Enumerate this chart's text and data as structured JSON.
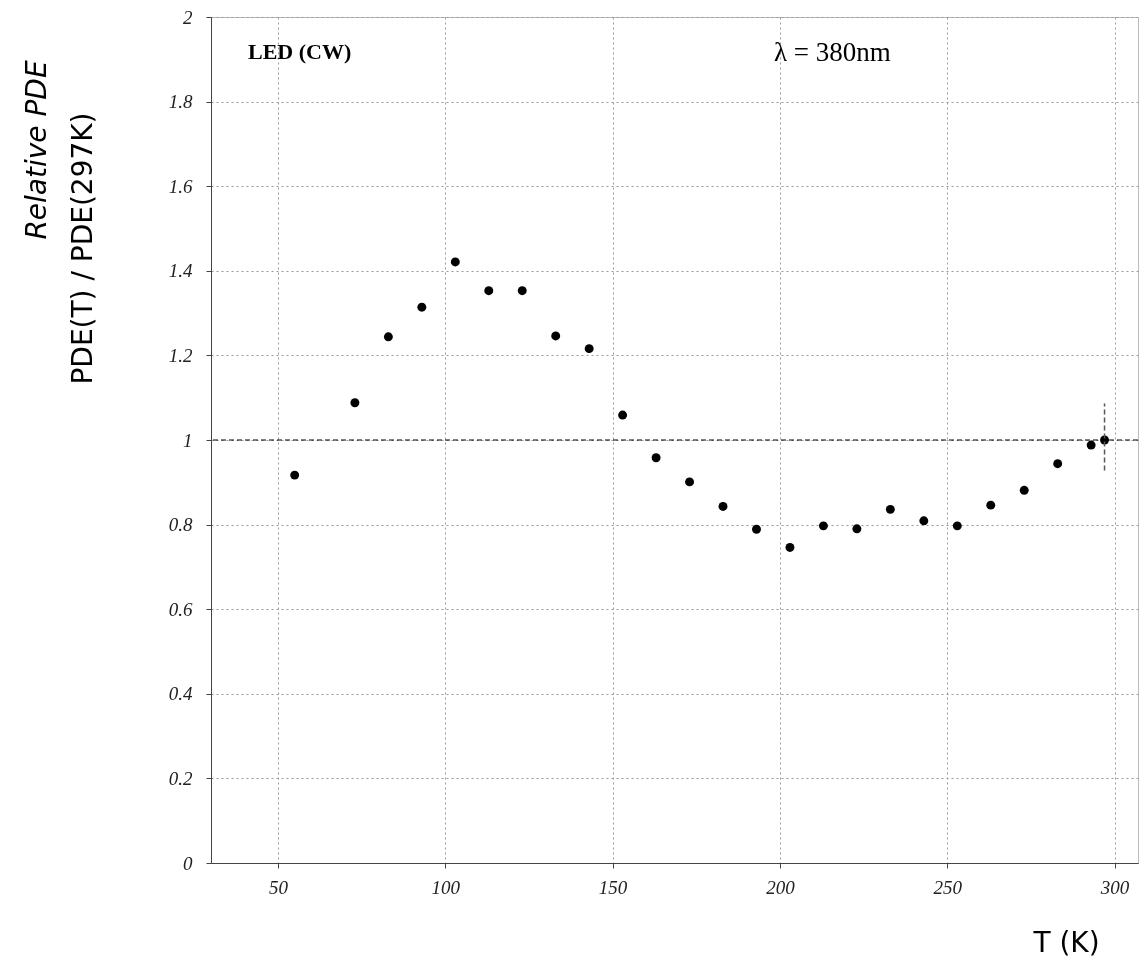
{
  "chart_data": {
    "type": "scatter",
    "xlabel": "T (K)",
    "ylabel": "PDE(T) / PDE(297K)",
    "annotations": [
      "Relative PDE",
      "LED (CW)",
      "λ = 380nm"
    ],
    "x": [
      55,
      73,
      83,
      93,
      103,
      113,
      123,
      133,
      143,
      153,
      163,
      173,
      183,
      193,
      203,
      213,
      223,
      233,
      243,
      253,
      263,
      273,
      283,
      293,
      297
    ],
    "series": [
      {
        "color": "#000000",
        "values": [
          0.917,
          1.088,
          1.244,
          1.314,
          1.421,
          1.353,
          1.353,
          1.246,
          1.216,
          1.059,
          0.958,
          0.901,
          0.843,
          0.789,
          0.746,
          0.797,
          0.79,
          0.836,
          0.809,
          0.797,
          0.846,
          0.881,
          0.944,
          0.988,
          1.0
        ],
        "errors": [
          null,
          null,
          null,
          null,
          null,
          null,
          null,
          null,
          null,
          null,
          null,
          null,
          null,
          null,
          null,
          null,
          null,
          null,
          null,
          null,
          null,
          null,
          null,
          null,
          [
            0.928,
            1.086
          ]
        ]
      }
    ],
    "xlim": [
      30,
      307
    ],
    "ylim": [
      0,
      2
    ],
    "xticks": [
      50,
      100,
      150,
      200,
      250,
      300
    ],
    "yticks": [
      0,
      0.2,
      0.4,
      0.6,
      0.8,
      1,
      1.2,
      1.4,
      1.6,
      1.8,
      2
    ],
    "ref_lines": [
      {
        "axis": "y",
        "value": 1,
        "line_style": "dashed",
        "color": "#000000"
      }
    ],
    "grid": true,
    "marker": "circle"
  }
}
